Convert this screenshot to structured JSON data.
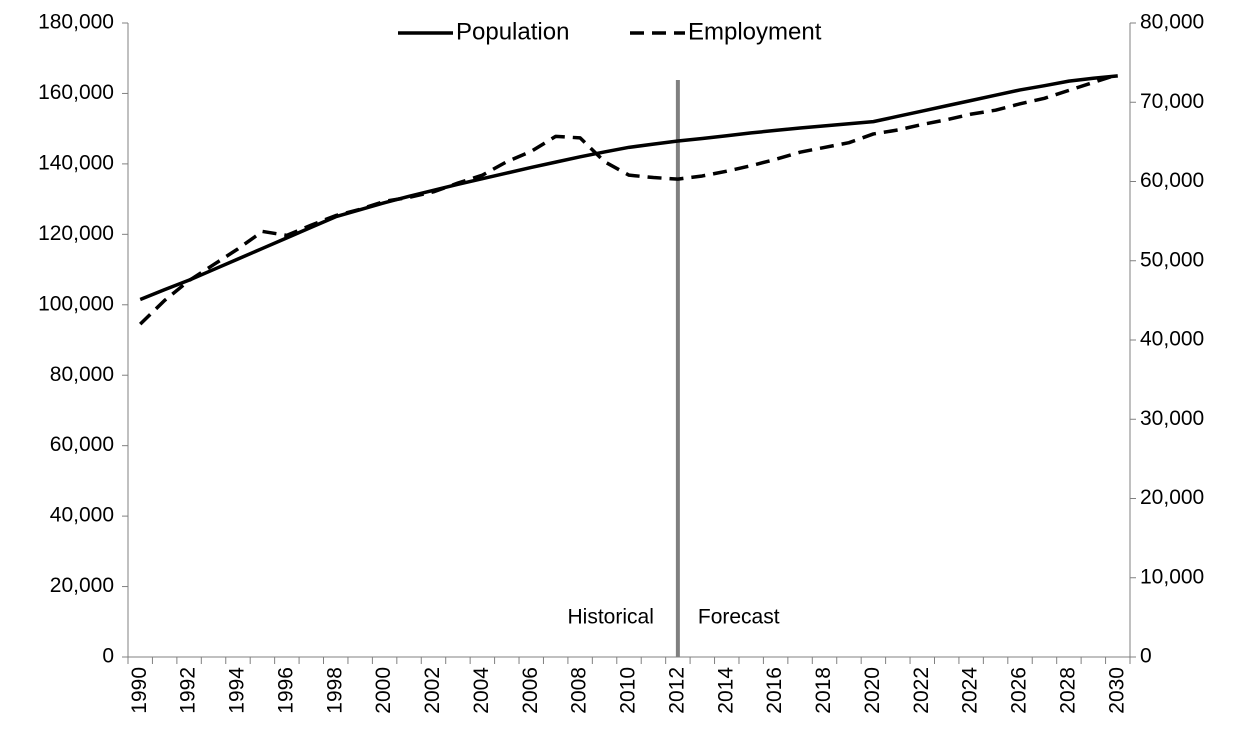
{
  "chart_data": {
    "type": "line",
    "categories": [
      "1990",
      null,
      "1992",
      null,
      "1994",
      null,
      "1996",
      null,
      "1998",
      null,
      "2000",
      null,
      "2002",
      null,
      "2004",
      null,
      "2006",
      null,
      "2008",
      null,
      "2010",
      null,
      "2012",
      null,
      "2014",
      null,
      "2016",
      null,
      "2018",
      null,
      "2020",
      null,
      "2022",
      null,
      "2024",
      null,
      "2026",
      null,
      "2028",
      null,
      "2030"
    ],
    "series": [
      {
        "name": "Population",
        "color": "#000000",
        "style": "solid",
        "values": [
          101500,
          104300,
          107000,
          110000,
          113000,
          116000,
          119000,
          122000,
          125000,
          127000,
          129000,
          130800,
          132500,
          134200,
          135800,
          137400,
          139000,
          140500,
          142000,
          143400,
          144700,
          145600,
          146500,
          147200,
          148000,
          148800,
          149500,
          150200,
          150800,
          151400,
          152000,
          153500,
          155000,
          156500,
          158000,
          159500,
          161000,
          162200,
          163500,
          164300,
          165000
        ]
      },
      {
        "name": "Employment",
        "color": "#000000",
        "style": "dashed",
        "axis": "y2",
        "values": [
          42000,
          45000,
          47500,
          49500,
          51500,
          53700,
          53200,
          54500,
          55700,
          56500,
          57500,
          58000,
          58700,
          59800,
          60800,
          62500,
          63800,
          65700,
          65500,
          62500,
          60800,
          60500,
          60300,
          60700,
          61300,
          62000,
          62800,
          63700,
          64300,
          64900,
          66000,
          66500,
          67200,
          67800,
          68500,
          69000,
          69800,
          70500,
          71500,
          72500,
          73500
        ]
      }
    ],
    "ylim": [
      0,
      180000
    ],
    "yticks": [
      0,
      {
        "value": 20000,
        "label": "20,000"
      },
      {
        "value": 40000,
        "label": "40,000"
      },
      {
        "value": 60000,
        "label": "60,000"
      },
      {
        "value": 80000,
        "label": "80,000"
      },
      {
        "value": 100000,
        "label": "100,000"
      },
      {
        "value": 120000,
        "label": "120,000"
      },
      {
        "value": 140000,
        "label": "140,000"
      },
      {
        "value": 160000,
        "label": "160,000"
      },
      {
        "value": 180000,
        "label": "180,000"
      }
    ],
    "y2lim": [
      0,
      80000
    ],
    "y2ticks": [
      0,
      {
        "value": 10000,
        "label": "10,000"
      },
      {
        "value": 20000,
        "label": "20,000"
      },
      {
        "value": 30000,
        "label": "30,000"
      },
      {
        "value": 40000,
        "label": "40,000"
      },
      {
        "value": 50000,
        "label": "50,000"
      },
      {
        "value": 60000,
        "label": "60,000"
      },
      {
        "value": 70000,
        "label": "70,000"
      },
      {
        "value": 80000,
        "label": "80,000"
      }
    ],
    "divider": {
      "x": "2012",
      "color": "#808080"
    },
    "annotations": [
      "Historical",
      "Forecast"
    ],
    "legend": "top"
  }
}
